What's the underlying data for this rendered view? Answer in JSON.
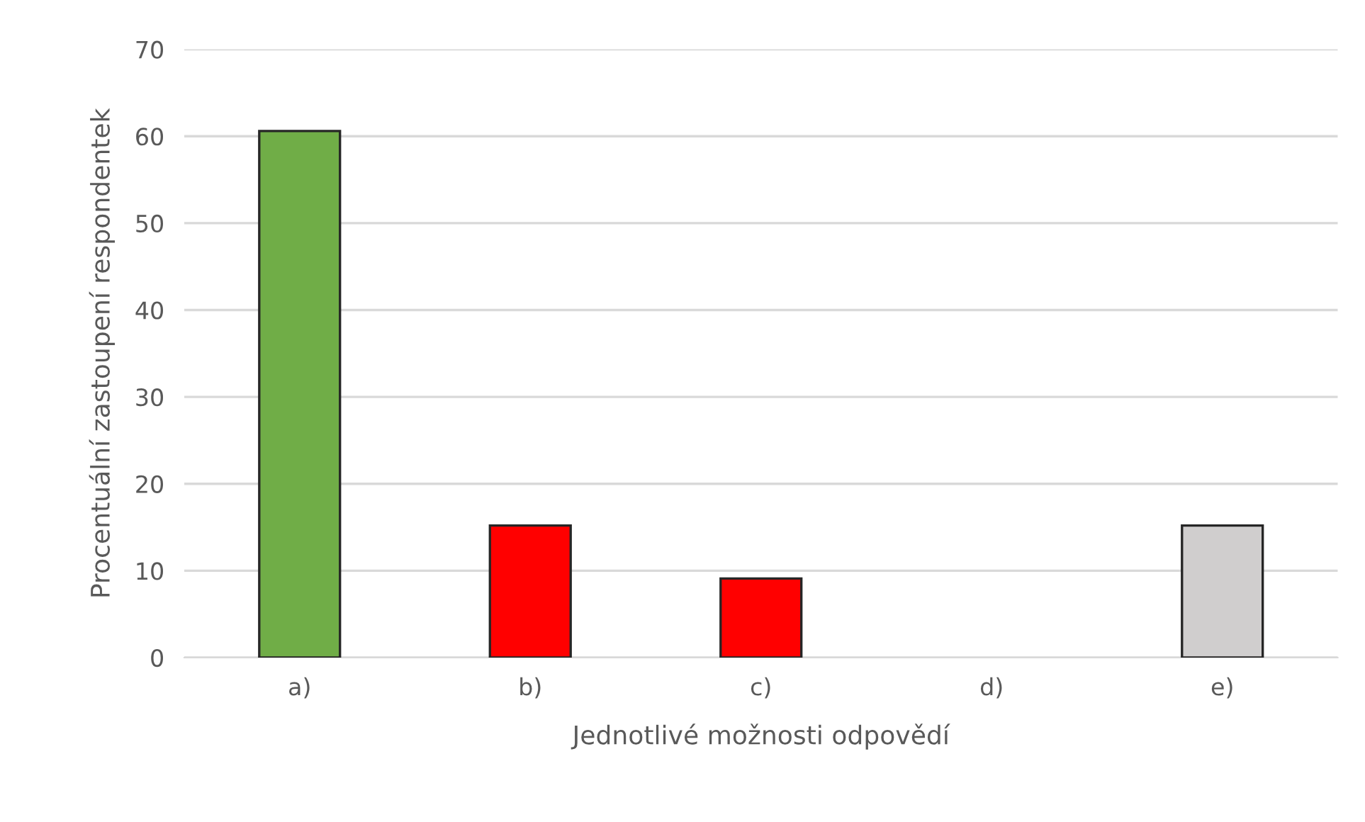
{
  "chart_data": {
    "type": "bar",
    "xlabel": "Jednotlivé možnosti odpovědí",
    "ylabel": "Procentuální zastoupení respondentek",
    "categories": [
      "a)",
      "b)",
      "c)",
      "d)",
      "e)"
    ],
    "values": [
      60.6,
      15.2,
      9.1,
      0,
      15.2
    ],
    "colors": [
      "#70ad47",
      "#ff0000",
      "#ff0000",
      "#ff0000",
      "#d0cece"
    ],
    "ylim": [
      0,
      70
    ],
    "yticks": [
      0,
      10,
      20,
      30,
      40,
      50,
      60,
      70
    ],
    "grid": "y",
    "legend": false
  }
}
